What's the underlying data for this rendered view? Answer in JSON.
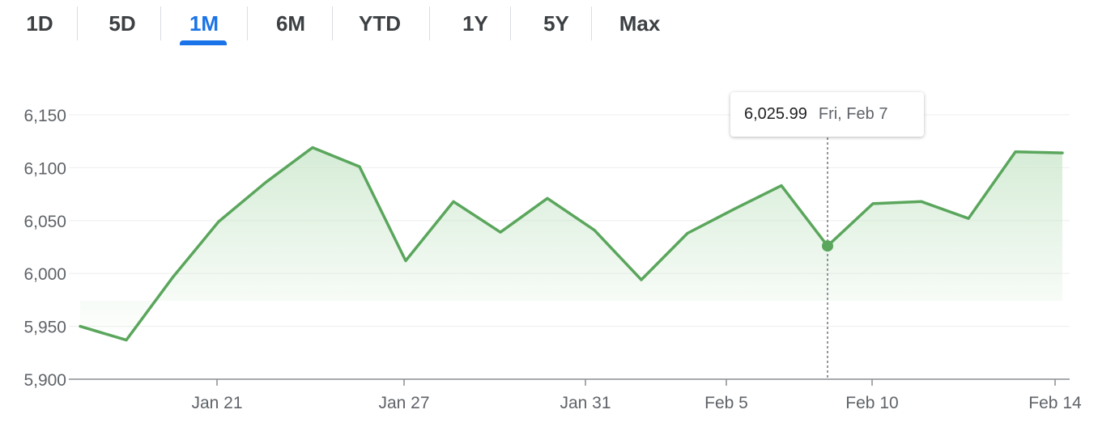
{
  "range_tabs": [
    "1D",
    "5D",
    "1M",
    "6M",
    "YTD",
    "1Y",
    "5Y",
    "Max"
  ],
  "active_tab": "1M",
  "colors": {
    "line": "#5aa65c",
    "area_top": "#c8e6c9",
    "accent": "#1a73e8",
    "grid": "#eeeeee"
  },
  "tooltip": {
    "value": "6,025.99",
    "date": "Fri, Feb 7"
  },
  "chart_data": {
    "type": "area",
    "title": "",
    "xlabel": "",
    "ylabel": "",
    "ylim": [
      5900,
      6150
    ],
    "y_ticks": [
      "5,900",
      "5,950",
      "6,000",
      "6,050",
      "6,100",
      "6,150"
    ],
    "x_ticks": [
      "Jan 21",
      "Jan 27",
      "Jan 31",
      "Feb 5",
      "Feb 10",
      "Feb 14"
    ],
    "grid": true,
    "x": [
      "Jan 16",
      "Jan 17",
      "Jan 20",
      "Jan 21",
      "Jan 22",
      "Jan 23",
      "Jan 24",
      "Jan 27",
      "Jan 28",
      "Jan 29",
      "Jan 30",
      "Jan 31",
      "Feb 3",
      "Feb 4",
      "Feb 5",
      "Feb 6",
      "Feb 7",
      "Feb 10",
      "Feb 11",
      "Feb 12",
      "Feb 13",
      "Feb 14"
    ],
    "values": [
      5950,
      5937,
      5996,
      6049,
      6086,
      6119,
      6101,
      6012,
      6068,
      6039,
      6071,
      6041,
      5994,
      6038,
      6061,
      6083,
      6025.99,
      6066,
      6068,
      6052,
      6115,
      6114
    ],
    "highlighted_point": {
      "x": "Feb 7",
      "y": 6025.99
    }
  }
}
